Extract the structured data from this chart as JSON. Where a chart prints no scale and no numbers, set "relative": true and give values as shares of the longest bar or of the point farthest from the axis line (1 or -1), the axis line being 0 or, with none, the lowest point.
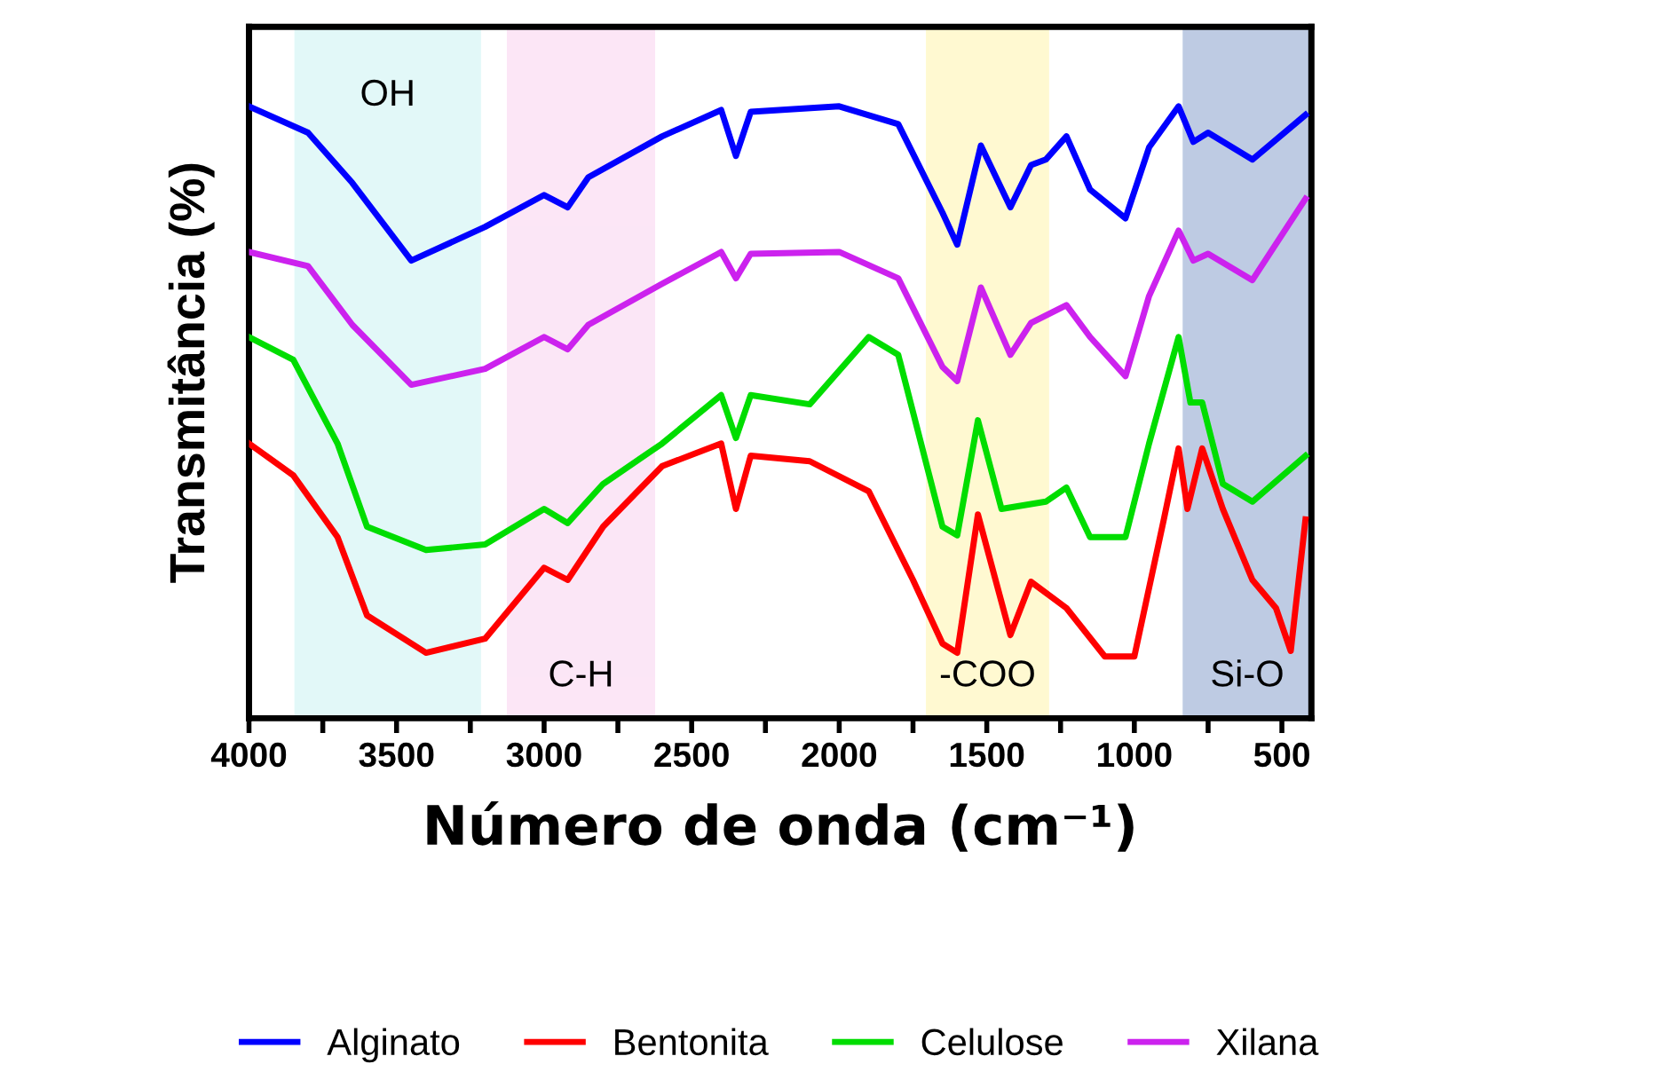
{
  "chart_data": {
    "type": "line",
    "relative": true,
    "xlabel": "Número de onda (cm⁻¹)",
    "ylabel": "Transmitância (%)",
    "xlim": [
      4000,
      400
    ],
    "xticks": [
      4000,
      {
        "value": 3750,
        "label": null
      },
      3500,
      {
        "value": 3250,
        "label": null
      },
      3000,
      {
        "value": 2750,
        "label": null
      },
      2500,
      {
        "value": 2250,
        "label": null
      },
      2000,
      {
        "value": 1750,
        "label": null
      },
      1500,
      {
        "value": 1250,
        "label": null
      },
      1000,
      {
        "value": 750,
        "label": null
      },
      500
    ],
    "grid": false,
    "legend": "bottom",
    "line_style": "solid",
    "marker": "none",
    "series": [
      {
        "name": "Alginato",
        "color": "#0000ff",
        "x": [
          4000,
          3800,
          3650,
          3450,
          3200,
          3000,
          2920,
          2850,
          2600,
          2400,
          2350,
          2300,
          2000,
          1800,
          1650,
          1600,
          1520,
          1420,
          1350,
          1300,
          1230,
          1150,
          1030,
          950,
          850,
          800,
          750,
          600,
          420
        ],
        "values": [
          1.0,
          0.957,
          0.875,
          0.748,
          0.803,
          0.855,
          0.835,
          0.884,
          0.951,
          0.994,
          0.919,
          0.991,
          1.0,
          0.971,
          0.826,
          0.774,
          0.936,
          0.835,
          0.904,
          0.913,
          0.951,
          0.864,
          0.817,
          0.933,
          1.0,
          0.942,
          0.957,
          0.913,
          0.986
        ]
      },
      {
        "name": "Bentonita",
        "color": "#ff0000",
        "x": [
          4000,
          3850,
          3700,
          3600,
          3400,
          3200,
          3000,
          2920,
          2800,
          2600,
          2400,
          2350,
          2300,
          2100,
          1900,
          1750,
          1650,
          1600,
          1530,
          1420,
          1350,
          1230,
          1100,
          1000,
          900,
          850,
          820,
          770,
          700,
          600,
          520,
          470,
          420
        ],
        "values": [
          0.449,
          0.397,
          0.296,
          0.168,
          0.107,
          0.13,
          0.246,
          0.226,
          0.313,
          0.412,
          0.449,
          0.342,
          0.429,
          0.42,
          0.371,
          0.226,
          0.122,
          0.107,
          0.333,
          0.136,
          0.223,
          0.18,
          0.101,
          0.101,
          0.325,
          0.441,
          0.342,
          0.441,
          0.342,
          0.226,
          0.18,
          0.11,
          0.325
        ]
      },
      {
        "name": "Celulose",
        "color": "#00dd00",
        "x": [
          4000,
          3850,
          3700,
          3600,
          3400,
          3200,
          3000,
          2920,
          2800,
          2600,
          2400,
          2350,
          2300,
          2100,
          1900,
          1800,
          1650,
          1600,
          1530,
          1450,
          1300,
          1230,
          1150,
          1030,
          950,
          850,
          810,
          770,
          700,
          600,
          420
        ],
        "values": [
          0.623,
          0.586,
          0.449,
          0.313,
          0.275,
          0.284,
          0.342,
          0.319,
          0.383,
          0.449,
          0.528,
          0.458,
          0.528,
          0.513,
          0.623,
          0.594,
          0.313,
          0.299,
          0.487,
          0.342,
          0.354,
          0.377,
          0.296,
          0.296,
          0.449,
          0.623,
          0.516,
          0.516,
          0.383,
          0.354,
          0.429
        ]
      },
      {
        "name": "Xilana",
        "color": "#cc22ee",
        "x": [
          4000,
          3800,
          3650,
          3450,
          3200,
          3000,
          2920,
          2850,
          2600,
          2400,
          2350,
          2300,
          2000,
          1800,
          1650,
          1600,
          1520,
          1420,
          1350,
          1230,
          1150,
          1030,
          950,
          850,
          800,
          750,
          600,
          420
        ],
        "values": [
          0.762,
          0.739,
          0.643,
          0.545,
          0.571,
          0.623,
          0.603,
          0.643,
          0.71,
          0.762,
          0.719,
          0.759,
          0.762,
          0.719,
          0.574,
          0.551,
          0.704,
          0.594,
          0.646,
          0.675,
          0.623,
          0.559,
          0.69,
          0.797,
          0.748,
          0.759,
          0.716,
          0.849
        ]
      }
    ],
    "bands": [
      {
        "axis": "x",
        "from": 3840,
        "to": 3220,
        "label": "OH",
        "color": "#bff0f0"
      },
      {
        "axis": "x",
        "from": 3120,
        "to": 2630,
        "label": "C-H",
        "color": "#f8c8ec"
      },
      {
        "axis": "x",
        "from": 1700,
        "to": 1295,
        "label": "-COO",
        "color": "#fff29a"
      },
      {
        "axis": "x",
        "from": 830,
        "to": 405,
        "label": "Si-O",
        "color": "#6f8cc0"
      }
    ]
  }
}
